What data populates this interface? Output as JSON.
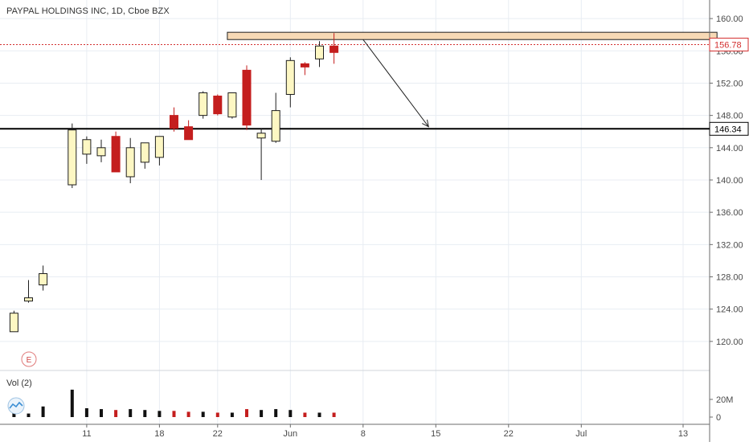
{
  "header": {
    "title": "PAYPAL HOLDINGS INC, 1D, Cboe BZX"
  },
  "earnings_marker": {
    "label": "E"
  },
  "volume_pane": {
    "label": "Vol (2)"
  },
  "colors": {
    "up_body": "#fdf7c3",
    "up_border": "#1e1e1e",
    "down_body": "#c41e1e",
    "down_border": "#c41e1e",
    "wick": "#1e1e1e",
    "resistance_zone_fill": "#f7d9b5",
    "resistance_zone_border": "#1e1e1e",
    "support_line": "#000000",
    "last_price_line": "#d32f2f",
    "grid": "#e8edf3",
    "axis_text": "#4a4a4a"
  },
  "chart_data": {
    "type": "candlestick",
    "price_axis": {
      "min": 116.5,
      "max": 162.3,
      "ticks": [
        "160.00",
        "156.00",
        "152.00",
        "148.00",
        "144.00",
        "140.00",
        "136.00",
        "132.00",
        "128.00",
        "124.00",
        "120.00"
      ],
      "tick_values": [
        160,
        156,
        152,
        148,
        144,
        140,
        136,
        132,
        128,
        124,
        120
      ]
    },
    "time_axis": {
      "labels": [
        "11",
        "18",
        "22",
        "Jun",
        "8",
        "15",
        "22",
        "Jul",
        "13"
      ],
      "label_index": [
        4,
        9,
        13,
        18,
        23,
        28,
        33,
        38,
        45
      ]
    },
    "volume_axis": {
      "labels": [
        "20M",
        "0"
      ],
      "label_values": [
        20,
        0
      ],
      "max": 36
    },
    "candles": [
      {
        "i": -1,
        "o": 121.2,
        "h": 123.8,
        "l": 121.2,
        "c": 123.5
      },
      {
        "i": 0,
        "o": 125.0,
        "h": 127.6,
        "l": 124.8,
        "c": 125.4
      },
      {
        "i": 1,
        "o": 127.0,
        "h": 129.4,
        "l": 126.3,
        "c": 128.4
      },
      {
        "i": 3,
        "o": 139.4,
        "h": 147.0,
        "l": 139.0,
        "c": 146.2
      },
      {
        "i": 4,
        "o": 143.2,
        "h": 145.4,
        "l": 142.0,
        "c": 145.0
      },
      {
        "i": 5,
        "o": 143.0,
        "h": 145.0,
        "l": 142.2,
        "c": 144.0
      },
      {
        "i": 6,
        "o": 145.4,
        "h": 146.0,
        "l": 141.0,
        "c": 141.0
      },
      {
        "i": 7,
        "o": 140.4,
        "h": 145.2,
        "l": 139.6,
        "c": 144.0
      },
      {
        "i": 8,
        "o": 142.2,
        "h": 144.6,
        "l": 141.4,
        "c": 144.6
      },
      {
        "i": 9,
        "o": 142.8,
        "h": 145.4,
        "l": 141.8,
        "c": 145.4
      },
      {
        "i": 10,
        "o": 148.0,
        "h": 149.0,
        "l": 146.0,
        "c": 146.4
      },
      {
        "i": 11,
        "o": 146.6,
        "h": 147.4,
        "l": 145.0,
        "c": 145.0
      },
      {
        "i": 12,
        "o": 148.0,
        "h": 151.0,
        "l": 147.6,
        "c": 150.8
      },
      {
        "i": 13,
        "o": 150.4,
        "h": 150.6,
        "l": 148.0,
        "c": 148.2
      },
      {
        "i": 14,
        "o": 147.8,
        "h": 150.8,
        "l": 147.6,
        "c": 150.8
      },
      {
        "i": 15,
        "o": 153.6,
        "h": 154.2,
        "l": 146.2,
        "c": 146.8
      },
      {
        "i": 16,
        "o": 145.2,
        "h": 146.4,
        "l": 140.0,
        "c": 145.8
      },
      {
        "i": 17,
        "o": 144.8,
        "h": 150.8,
        "l": 144.6,
        "c": 148.6
      },
      {
        "i": 18,
        "o": 150.6,
        "h": 155.2,
        "l": 149.0,
        "c": 154.8
      },
      {
        "i": 19,
        "o": 154.4,
        "h": 154.6,
        "l": 153.0,
        "c": 154.0
      },
      {
        "i": 20,
        "o": 155.0,
        "h": 157.2,
        "l": 154.0,
        "c": 156.6
      },
      {
        "i": 21,
        "o": 156.6,
        "h": 158.2,
        "l": 154.4,
        "c": 155.8
      }
    ],
    "volume": [
      {
        "i": -1,
        "v": 5,
        "d": false
      },
      {
        "i": 0,
        "v": 4,
        "d": false
      },
      {
        "i": 1,
        "v": 12,
        "d": false
      },
      {
        "i": 3,
        "v": 31,
        "d": false
      },
      {
        "i": 4,
        "v": 10,
        "d": false
      },
      {
        "i": 5,
        "v": 9,
        "d": false
      },
      {
        "i": 6,
        "v": 8,
        "d": true
      },
      {
        "i": 7,
        "v": 9,
        "d": false
      },
      {
        "i": 8,
        "v": 8,
        "d": false
      },
      {
        "i": 9,
        "v": 7,
        "d": false
      },
      {
        "i": 10,
        "v": 7,
        "d": true
      },
      {
        "i": 11,
        "v": 6,
        "d": true
      },
      {
        "i": 12,
        "v": 6,
        "d": false
      },
      {
        "i": 13,
        "v": 5,
        "d": true
      },
      {
        "i": 14,
        "v": 5,
        "d": false
      },
      {
        "i": 15,
        "v": 9,
        "d": true
      },
      {
        "i": 16,
        "v": 8,
        "d": false
      },
      {
        "i": 17,
        "v": 9,
        "d": false
      },
      {
        "i": 18,
        "v": 8,
        "d": false
      },
      {
        "i": 19,
        "v": 5,
        "d": true
      },
      {
        "i": 20,
        "v": 5,
        "d": false
      },
      {
        "i": 21,
        "v": 5,
        "d": true
      }
    ],
    "last_price": {
      "value": 156.78,
      "label": "156.78"
    },
    "support_level": {
      "value": 146.34,
      "label": "146.34"
    },
    "resistance_zone": {
      "from_index": 14,
      "to_index": 47,
      "low": 157.4,
      "high": 158.3
    },
    "projection_arrow": {
      "from_index": 23,
      "from_price": 157.4,
      "to_index": 27.5,
      "to_price": 146.6
    },
    "grid": true
  }
}
